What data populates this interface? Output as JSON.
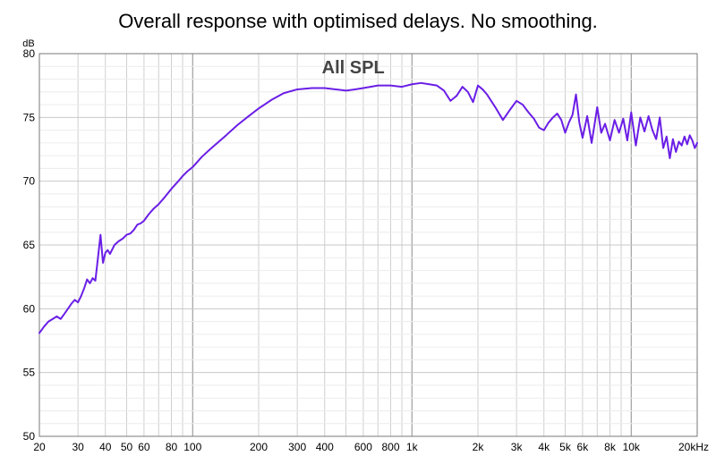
{
  "chart_data": {
    "type": "line",
    "title": "Overall response with optimised delays. No smoothing.",
    "plot_label": "All SPL",
    "ylabel": "dB",
    "xlabel": "",
    "x_scale": "log",
    "xlim": [
      20,
      20000
    ],
    "ylim": [
      50,
      80
    ],
    "x_ticks": [
      {
        "value": 20,
        "label": "20"
      },
      {
        "value": 30,
        "label": "30"
      },
      {
        "value": 40,
        "label": "40"
      },
      {
        "value": 50,
        "label": "50"
      },
      {
        "value": 60,
        "label": "60"
      },
      {
        "value": 80,
        "label": "80"
      },
      {
        "value": 100,
        "label": "100"
      },
      {
        "value": 200,
        "label": "200"
      },
      {
        "value": 300,
        "label": "300"
      },
      {
        "value": 400,
        "label": "400"
      },
      {
        "value": 600,
        "label": "600"
      },
      {
        "value": 800,
        "label": "800"
      },
      {
        "value": 1000,
        "label": "1k"
      },
      {
        "value": 2000,
        "label": "2k"
      },
      {
        "value": 3000,
        "label": "3k"
      },
      {
        "value": 4000,
        "label": "4k"
      },
      {
        "value": 5000,
        "label": "5k"
      },
      {
        "value": 6000,
        "label": "6k"
      },
      {
        "value": 8000,
        "label": "8k"
      },
      {
        "value": 10000,
        "label": "10k"
      },
      {
        "value": 20000,
        "label": "20kHz"
      }
    ],
    "y_ticks": [
      {
        "value": 50,
        "label": "50"
      },
      {
        "value": 55,
        "label": "55"
      },
      {
        "value": 60,
        "label": "60"
      },
      {
        "value": 65,
        "label": "65"
      },
      {
        "value": 70,
        "label": "70"
      },
      {
        "value": 75,
        "label": "75"
      },
      {
        "value": 80,
        "label": "80"
      }
    ],
    "grid": true,
    "series": [
      {
        "color": "#6a1ee6",
        "x": [
          20,
          21,
          22,
          23,
          24,
          25,
          26,
          27,
          28,
          29,
          30,
          31,
          32,
          33,
          34,
          35,
          36,
          37,
          38,
          39,
          40,
          41,
          42,
          44,
          46,
          48,
          50,
          52,
          54,
          56,
          58,
          60,
          63,
          66,
          70,
          75,
          80,
          85,
          90,
          95,
          100,
          110,
          120,
          140,
          160,
          180,
          200,
          230,
          260,
          300,
          350,
          400,
          450,
          500,
          550,
          600,
          700,
          800,
          900,
          1000,
          1100,
          1200,
          1300,
          1400,
          1500,
          1600,
          1700,
          1800,
          1900,
          2000,
          2100,
          2200,
          2400,
          2600,
          2800,
          3000,
          3200,
          3400,
          3600,
          3800,
          4000,
          4200,
          4400,
          4600,
          4800,
          5000,
          5200,
          5400,
          5600,
          5800,
          6000,
          6300,
          6600,
          7000,
          7300,
          7600,
          8000,
          8400,
          8800,
          9200,
          9600,
          10000,
          10500,
          11000,
          11500,
          12000,
          12500,
          13000,
          13500,
          14000,
          14500,
          15000,
          15500,
          16000,
          16500,
          17000,
          17500,
          18000,
          18500,
          19000,
          19500,
          20000
        ],
        "y": [
          58.1,
          58.6,
          59.0,
          59.2,
          59.4,
          59.2,
          59.6,
          60.0,
          60.4,
          60.7,
          60.5,
          61.0,
          61.6,
          62.3,
          62.0,
          62.4,
          62.2,
          64.0,
          65.8,
          63.6,
          64.4,
          64.6,
          64.3,
          65.0,
          65.3,
          65.5,
          65.8,
          65.9,
          66.2,
          66.6,
          66.7,
          66.9,
          67.4,
          67.8,
          68.2,
          68.8,
          69.4,
          69.9,
          70.4,
          70.8,
          71.1,
          71.9,
          72.5,
          73.5,
          74.4,
          75.1,
          75.7,
          76.4,
          76.9,
          77.2,
          77.3,
          77.3,
          77.2,
          77.1,
          77.2,
          77.3,
          77.5,
          77.5,
          77.4,
          77.6,
          77.7,
          77.6,
          77.5,
          77.1,
          76.3,
          76.7,
          77.4,
          77.0,
          76.2,
          77.5,
          77.2,
          76.8,
          75.8,
          74.8,
          75.6,
          76.3,
          76.0,
          75.4,
          74.9,
          74.2,
          74.0,
          74.6,
          75.0,
          75.3,
          74.8,
          73.8,
          74.6,
          75.2,
          76.8,
          74.6,
          73.4,
          75.1,
          73.0,
          75.8,
          73.8,
          74.5,
          73.2,
          74.8,
          73.8,
          74.9,
          73.2,
          75.4,
          72.8,
          75.0,
          73.9,
          75.1,
          74.0,
          73.3,
          75.0,
          72.6,
          73.5,
          71.8,
          73.3,
          72.3,
          73.1,
          72.8,
          73.5,
          72.9,
          73.6,
          73.2,
          72.6,
          73.0
        ]
      }
    ]
  }
}
